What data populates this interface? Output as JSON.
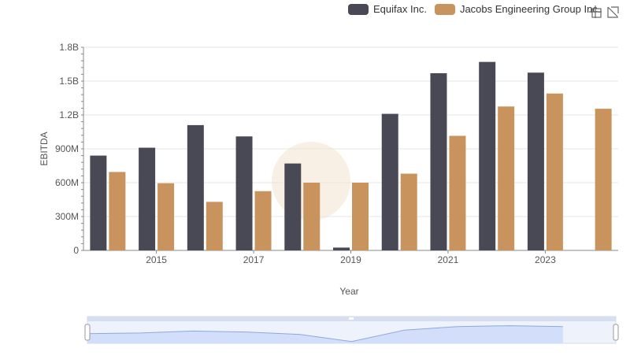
{
  "legend": {
    "items": [
      {
        "label": "Equifax Inc.",
        "color": "#494955"
      },
      {
        "label": "Jacobs Engineering Group Inc.",
        "color": "#c8935c"
      }
    ]
  },
  "toolbox": {
    "icons": [
      "zoom-icon",
      "restore-icon"
    ]
  },
  "chart_data": {
    "type": "bar",
    "categories": [
      "2014",
      "2015",
      "2016",
      "2017",
      "2018",
      "2019",
      "2020",
      "2021",
      "2022",
      "2023",
      "2024"
    ],
    "x_tick_labels": [
      "2015",
      "2017",
      "2019",
      "2021",
      "2023"
    ],
    "y_tick_labels": [
      "0",
      "300M",
      "600M",
      "900M",
      "1.2B",
      "1.5B",
      "1.8B"
    ],
    "ylim": [
      0,
      1800000000
    ],
    "xlabel": "Year",
    "ylabel": "EBITDA",
    "grid": true,
    "legend_position": "top-right",
    "series": [
      {
        "name": "Equifax Inc.",
        "color": "#494955",
        "values": [
          840000000,
          910000000,
          1110000000,
          1010000000,
          770000000,
          25000000,
          1210000000,
          1570000000,
          1670000000,
          1575000000,
          null
        ]
      },
      {
        "name": "Jacobs Engineering Group Inc.",
        "color": "#c8935c",
        "values": [
          695000000,
          595000000,
          430000000,
          525000000,
          600000000,
          600000000,
          680000000,
          1015000000,
          1275000000,
          1390000000,
          1255000000
        ]
      }
    ]
  }
}
